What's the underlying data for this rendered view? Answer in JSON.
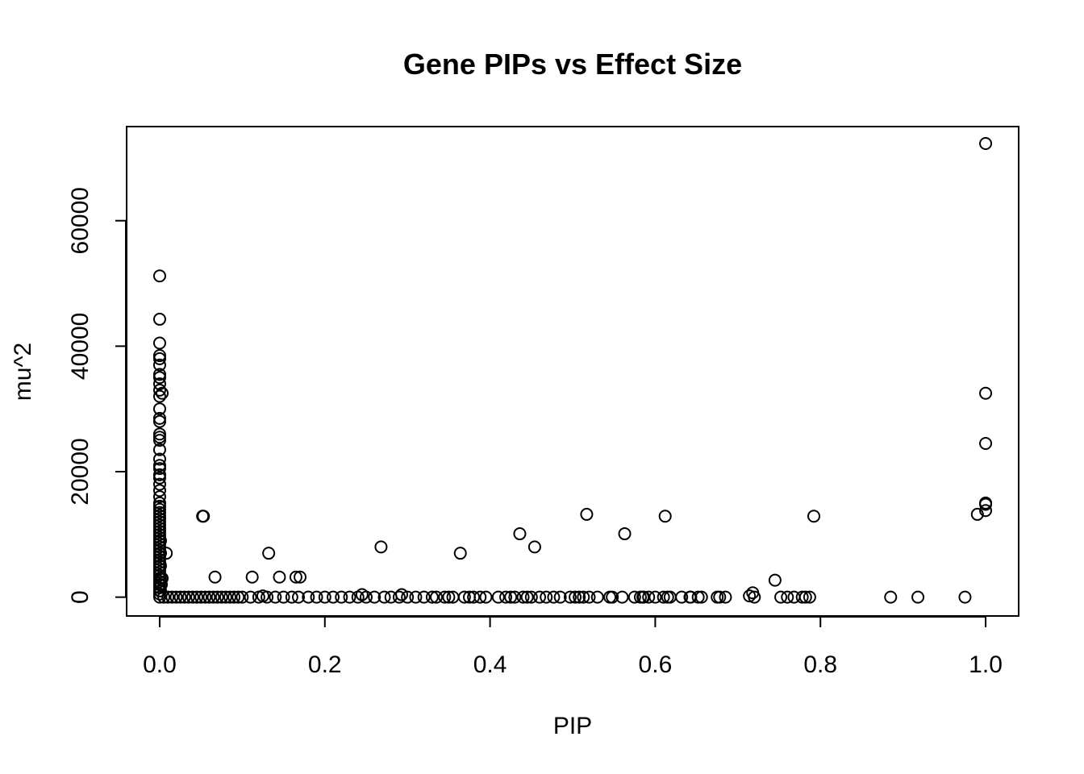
{
  "chart_data": {
    "type": "scatter",
    "title": "Gene PIPs vs Effect Size",
    "xlabel": "PIP",
    "ylabel": "mu^2",
    "xlim": [
      -0.04,
      1.04
    ],
    "ylim": [
      -3000,
      75000
    ],
    "x_ticks": [
      0.0,
      0.2,
      0.4,
      0.6,
      0.8,
      1.0
    ],
    "x_tick_labels": [
      "0.0",
      "0.2",
      "0.4",
      "0.6",
      "0.8",
      "1.0"
    ],
    "y_ticks": [
      0,
      20000,
      40000,
      60000
    ],
    "y_tick_labels": [
      "0",
      "20000",
      "40000",
      "60000"
    ],
    "grid": false,
    "legend": "none",
    "marker": "open-circle",
    "colors": {
      "points": "#000000",
      "axes": "#000000",
      "background": "#ffffff"
    },
    "points": [
      [
        1.0,
        72300
      ],
      [
        1.0,
        32500
      ],
      [
        1.0,
        24500
      ],
      [
        1.0,
        15000
      ],
      [
        1.0,
        14800
      ],
      [
        1.0,
        13800
      ],
      [
        0.99,
        13200
      ],
      [
        0.975,
        0
      ],
      [
        0.918,
        0
      ],
      [
        0.885,
        0
      ],
      [
        0.792,
        12900
      ],
      [
        0.787,
        0
      ],
      [
        0.782,
        0
      ],
      [
        0.778,
        0
      ],
      [
        0.768,
        0
      ],
      [
        0.76,
        0
      ],
      [
        0.752,
        0
      ],
      [
        0.745,
        2700
      ],
      [
        0.72,
        0
      ],
      [
        0.718,
        700
      ],
      [
        0.714,
        200
      ],
      [
        0.685,
        0
      ],
      [
        0.678,
        0
      ],
      [
        0.675,
        0
      ],
      [
        0.656,
        0
      ],
      [
        0.652,
        0
      ],
      [
        0.643,
        0
      ],
      [
        0.642,
        0
      ],
      [
        0.632,
        0
      ],
      [
        0.618,
        0
      ],
      [
        0.615,
        0
      ],
      [
        0.612,
        12900
      ],
      [
        0.61,
        0
      ],
      [
        0.6,
        0
      ],
      [
        0.592,
        0
      ],
      [
        0.586,
        0
      ],
      [
        0.585,
        0
      ],
      [
        0.582,
        0
      ],
      [
        0.575,
        0
      ],
      [
        0.563,
        10100
      ],
      [
        0.56,
        0
      ],
      [
        0.548,
        0
      ],
      [
        0.545,
        0
      ],
      [
        0.53,
        0
      ],
      [
        0.52,
        0
      ],
      [
        0.517,
        13200
      ],
      [
        0.513,
        0
      ],
      [
        0.508,
        0
      ],
      [
        0.503,
        0
      ],
      [
        0.497,
        0
      ],
      [
        0.485,
        0
      ],
      [
        0.477,
        0
      ],
      [
        0.468,
        0
      ],
      [
        0.46,
        0
      ],
      [
        0.454,
        8000
      ],
      [
        0.45,
        0
      ],
      [
        0.445,
        0
      ],
      [
        0.44,
        0
      ],
      [
        0.436,
        10100
      ],
      [
        0.43,
        0
      ],
      [
        0.425,
        0
      ],
      [
        0.419,
        0
      ],
      [
        0.41,
        0
      ],
      [
        0.395,
        0
      ],
      [
        0.388,
        0
      ],
      [
        0.38,
        0
      ],
      [
        0.375,
        0
      ],
      [
        0.369,
        0
      ],
      [
        0.364,
        7000
      ],
      [
        0.355,
        0
      ],
      [
        0.35,
        0
      ],
      [
        0.345,
        0
      ],
      [
        0.335,
        0
      ],
      [
        0.33,
        0
      ],
      [
        0.32,
        0
      ],
      [
        0.31,
        0
      ],
      [
        0.3,
        0
      ],
      [
        0.293,
        400
      ],
      [
        0.29,
        0
      ],
      [
        0.28,
        0
      ],
      [
        0.272,
        0
      ],
      [
        0.268,
        8000
      ],
      [
        0.26,
        0
      ],
      [
        0.25,
        0
      ],
      [
        0.245,
        400
      ],
      [
        0.24,
        0
      ],
      [
        0.23,
        0
      ],
      [
        0.22,
        0
      ],
      [
        0.21,
        0
      ],
      [
        0.2,
        0
      ],
      [
        0.19,
        0
      ],
      [
        0.18,
        0
      ],
      [
        0.17,
        3200
      ],
      [
        0.168,
        0
      ],
      [
        0.165,
        3200
      ],
      [
        0.16,
        0
      ],
      [
        0.15,
        0
      ],
      [
        0.145,
        3200
      ],
      [
        0.14,
        0
      ],
      [
        0.132,
        7000
      ],
      [
        0.13,
        0
      ],
      [
        0.125,
        200
      ],
      [
        0.12,
        0
      ],
      [
        0.112,
        3200
      ],
      [
        0.11,
        0
      ],
      [
        0.1,
        0
      ],
      [
        0.095,
        0
      ],
      [
        0.09,
        0
      ],
      [
        0.085,
        0
      ],
      [
        0.08,
        0
      ],
      [
        0.075,
        0
      ],
      [
        0.07,
        0
      ],
      [
        0.067,
        3200
      ],
      [
        0.065,
        0
      ],
      [
        0.06,
        0
      ],
      [
        0.055,
        0
      ],
      [
        0.052,
        12900
      ],
      [
        0.053,
        12900
      ],
      [
        0.05,
        0
      ],
      [
        0.045,
        0
      ],
      [
        0.04,
        0
      ],
      [
        0.035,
        0
      ],
      [
        0.03,
        0
      ],
      [
        0.025,
        0
      ],
      [
        0.02,
        0
      ],
      [
        0.015,
        0
      ],
      [
        0.01,
        0
      ],
      [
        0.008,
        7000
      ],
      [
        0.005,
        0
      ],
      [
        0.003,
        32500
      ],
      [
        0.003,
        3000
      ],
      [
        0.002,
        2000
      ],
      [
        0.0,
        51200
      ],
      [
        0.0,
        44300
      ],
      [
        0.0,
        40500
      ],
      [
        0.0,
        38500
      ],
      [
        0.0,
        38000
      ],
      [
        0.0,
        37000
      ],
      [
        0.0,
        35500
      ],
      [
        0.0,
        35000
      ],
      [
        0.0,
        34000
      ],
      [
        0.0,
        33000
      ],
      [
        0.0,
        32000
      ],
      [
        0.0,
        30000
      ],
      [
        0.0,
        28500
      ],
      [
        0.0,
        28000
      ],
      [
        0.0,
        26000
      ],
      [
        0.0,
        25500
      ],
      [
        0.0,
        25000
      ],
      [
        0.0,
        23500
      ],
      [
        0.0,
        22000
      ],
      [
        0.0,
        21000
      ],
      [
        0.0,
        20500
      ],
      [
        0.0,
        19500
      ],
      [
        0.0,
        19000
      ],
      [
        0.0,
        18000
      ],
      [
        0.0,
        17000
      ],
      [
        0.0,
        16000
      ],
      [
        0.0,
        15000
      ],
      [
        0.0,
        14500
      ],
      [
        0.0,
        14000
      ],
      [
        0.0,
        13500
      ],
      [
        0.0,
        13000
      ],
      [
        0.0,
        12500
      ],
      [
        0.0,
        12000
      ],
      [
        0.0,
        11500
      ],
      [
        0.0,
        11000
      ],
      [
        0.0,
        10500
      ],
      [
        0.0,
        10000
      ],
      [
        0.0,
        9500
      ],
      [
        0.0,
        9000
      ],
      [
        0.0,
        8500
      ],
      [
        0.0,
        8000
      ],
      [
        0.0,
        7500
      ],
      [
        0.0,
        7000
      ],
      [
        0.0,
        6500
      ],
      [
        0.0,
        6000
      ],
      [
        0.0,
        5500
      ],
      [
        0.0,
        5000
      ],
      [
        0.0,
        4500
      ],
      [
        0.0,
        4000
      ],
      [
        0.0,
        3500
      ],
      [
        0.0,
        3000
      ],
      [
        0.0,
        2500
      ],
      [
        0.0,
        2000
      ],
      [
        0.0,
        1500
      ],
      [
        0.0,
        1000
      ],
      [
        0.0,
        500
      ],
      [
        0.0,
        0
      ],
      [
        0.001,
        9000
      ],
      [
        0.001,
        7000
      ],
      [
        0.001,
        5000
      ],
      [
        0.001,
        3000
      ],
      [
        0.001,
        1000
      ]
    ]
  }
}
